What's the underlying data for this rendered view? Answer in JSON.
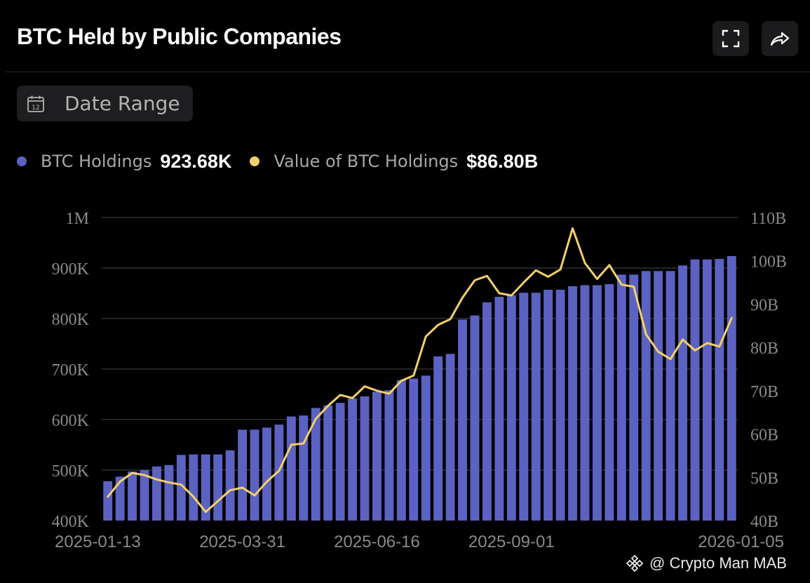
{
  "header": {
    "title": "BTC Held by Public Companies"
  },
  "toolbar": {
    "fullscreen_icon": "fullscreen-icon",
    "share_icon": "share-icon"
  },
  "filters": {
    "date_range_label": "Date Range",
    "calendar_icon_text": "12"
  },
  "legend": {
    "btc_holdings_label": "BTC Holdings",
    "btc_holdings_value": "923.68K",
    "btc_value_label": "Value of BTC Holdings",
    "btc_value_value": "$86.80B"
  },
  "colors": {
    "bar": "#5b62c2",
    "line": "#f3cf6b",
    "grid": "#3a3a3c",
    "axis_text": "#8a8a8a"
  },
  "chart_data": {
    "type": "bar",
    "title": "BTC Held by Public Companies",
    "left_axis": {
      "min": 400000,
      "max": 1000000,
      "ticks": [
        "400K",
        "500K",
        "600K",
        "700K",
        "800K",
        "900K",
        "1M"
      ]
    },
    "right_axis": {
      "min": 40,
      "max": 110,
      "ticks": [
        "40B",
        "50B",
        "60B",
        "70B",
        "80B",
        "90B",
        "100B",
        "110B"
      ]
    },
    "x_tick_labels": [
      "2025-01-13",
      "2025-03-31",
      "2025-06-16",
      "2025-09-01",
      "2026-01-05"
    ],
    "x_tick_indices": [
      0,
      11,
      22,
      33,
      51
    ],
    "grid": true,
    "series": [
      {
        "name": "BTC Holdings",
        "type": "bar",
        "axis": "left",
        "values": [
          478000,
          487000,
          497000,
          500000,
          507000,
          510000,
          530000,
          531000,
          531000,
          531000,
          539000,
          580000,
          580000,
          584000,
          590000,
          606000,
          608000,
          623000,
          628000,
          633000,
          642000,
          646000,
          655000,
          658000,
          678000,
          681000,
          687000,
          725000,
          730000,
          798000,
          806000,
          832000,
          843000,
          846000,
          851000,
          851000,
          857000,
          857000,
          864000,
          866000,
          866000,
          868000,
          887000,
          887000,
          894000,
          894000,
          894000,
          905000,
          917000,
          917000,
          918000,
          923680
        ]
      },
      {
        "name": "Value of BTC Holdings",
        "type": "line",
        "axis": "right",
        "values": [
          45.5,
          49.0,
          51.0,
          50.5,
          49.5,
          48.8,
          48.3,
          45.5,
          42.0,
          44.5,
          47.0,
          47.6,
          45.8,
          49.0,
          51.5,
          57.5,
          57.8,
          63.5,
          66.5,
          69.0,
          68.3,
          71.0,
          70.0,
          69.3,
          72.3,
          73.5,
          82.5,
          85.2,
          86.5,
          91.5,
          95.5,
          96.5,
          92.5,
          92.0,
          95.0,
          97.8,
          96.3,
          98.0,
          107.5,
          99.5,
          95.8,
          99.0,
          94.5,
          94.0,
          83.0,
          79.0,
          77.3,
          81.8,
          79.3,
          81.0,
          80.2,
          86.8
        ]
      }
    ]
  },
  "watermark": {
    "text": "@ Crypto Man MAB"
  }
}
